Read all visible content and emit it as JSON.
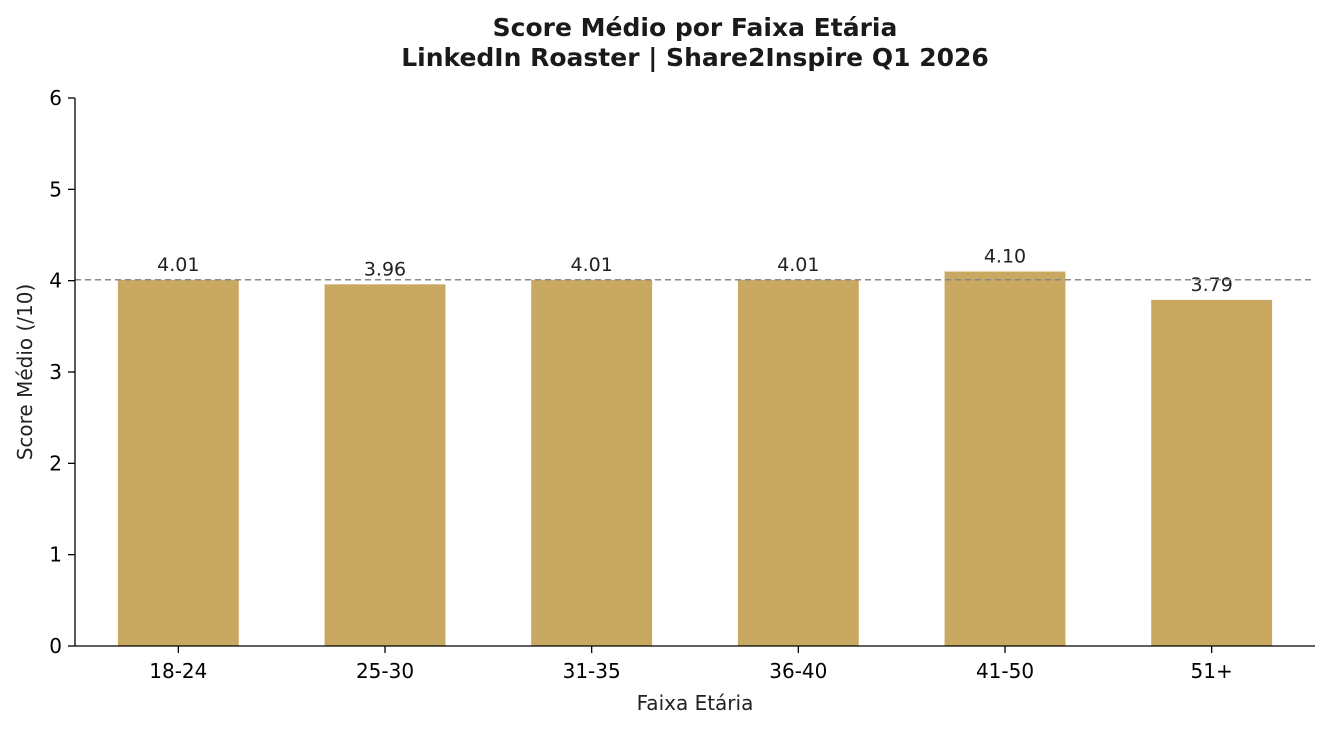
{
  "chart_data": {
    "type": "bar",
    "title": "Score Médio por Faixa Etária",
    "subtitle": "LinkedIn Roaster | Share2Inspire Q1 2026",
    "xlabel": "Faixa Etária",
    "ylabel": "Score Médio (/10)",
    "categories": [
      "18-24",
      "25-30",
      "31-35",
      "36-40",
      "41-50",
      "51+"
    ],
    "values": [
      4.01,
      3.96,
      4.01,
      4.01,
      4.1,
      3.79
    ],
    "value_labels": [
      "4.01",
      "3.96",
      "4.01",
      "4.01",
      "4.10",
      "3.79"
    ],
    "ylim": [
      0,
      6
    ],
    "yticks": [
      "0",
      "1",
      "2",
      "3",
      "4",
      "5",
      "6"
    ],
    "reference_line": {
      "value": 4.01,
      "style": "dashed",
      "color": "#888888"
    },
    "bar_color": "#C9A862",
    "grid": false,
    "legend": "none"
  }
}
